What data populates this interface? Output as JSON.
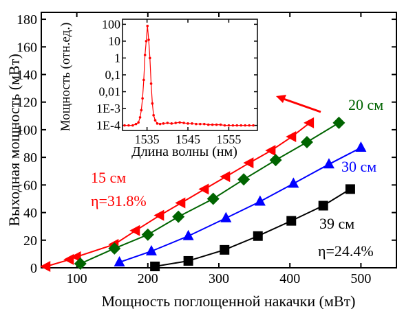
{
  "chart_data": [
    {
      "type": "line",
      "xlabel": "Мощность поглощенной накачки (мВт)",
      "ylabel": "Выходная мощность (мВт)",
      "xlim": [
        50,
        550
      ],
      "ylim": [
        0,
        185
      ],
      "xticks": [
        100,
        200,
        300,
        400,
        500
      ],
      "yticks": [
        0,
        20,
        40,
        60,
        80,
        100,
        120,
        140,
        160,
        180
      ],
      "grid": false,
      "series": [
        {
          "name": "15 см",
          "color": "#ff0000",
          "marker": "triangle-left",
          "x": [
            57,
            90,
            100,
            153,
            183,
            217,
            247,
            280,
            310,
            343,
            374,
            403,
            428
          ],
          "y": [
            1,
            6,
            8,
            17,
            27,
            38,
            47,
            57,
            66,
            76,
            85,
            95,
            105
          ]
        },
        {
          "name": "20 см",
          "color": "#006400",
          "marker": "diamond",
          "x": [
            105,
            153,
            200,
            243,
            292,
            335,
            380,
            424,
            469
          ],
          "y": [
            3,
            14,
            24,
            37,
            50,
            64,
            78,
            91,
            105
          ]
        },
        {
          "name": "30 см",
          "color": "#0000ff",
          "marker": "triangle-up",
          "x": [
            160,
            205,
            257,
            310,
            358,
            405,
            455,
            500
          ],
          "y": [
            4,
            12,
            23,
            36,
            48,
            61,
            75,
            87
          ]
        },
        {
          "name": "39 см",
          "color": "#000000",
          "marker": "square",
          "x": [
            210,
            257,
            308,
            355,
            402,
            447,
            485
          ],
          "y": [
            1,
            5,
            13,
            23,
            34,
            45,
            57
          ]
        }
      ],
      "annotations": [
        {
          "text": "15 см",
          "color": "#ff0000"
        },
        {
          "text": "η=31.8%",
          "color": "#ff0000"
        },
        {
          "text": "20 см",
          "color": "#006400"
        },
        {
          "text": "30 см",
          "color": "#0000ff"
        },
        {
          "text": "39 см",
          "color": "#000000"
        },
        {
          "text": "η=24.4%",
          "color": "#000000"
        }
      ]
    },
    {
      "type": "line",
      "xlabel": "Длина волны (нм)",
      "ylabel": "Мощность (отн.ед.)",
      "xlim": [
        1529,
        1562
      ],
      "ylog": true,
      "ylim": [
        5e-05,
        200
      ],
      "xticks": [
        1535,
        1545,
        1555
      ],
      "yticks": [
        100,
        10,
        1,
        0.1,
        0.01,
        0.001,
        0.0001
      ],
      "ytick_labels": [
        "100",
        "10",
        "1",
        "0,1",
        "0,01",
        "1E-3",
        "1E-4"
      ],
      "series": [
        {
          "color": "#ff0000",
          "x": [
            1529.5,
            1530.5,
            1531.5,
            1532.3,
            1532.9,
            1533.3,
            1533.6,
            1533.9,
            1534.2,
            1534.5,
            1534.8,
            1535.1,
            1535.4,
            1535.7,
            1536.0,
            1536.3,
            1536.6,
            1537.0,
            1537.5,
            1538.2,
            1539.0,
            1540.0,
            1541.0,
            1542.0,
            1543.0,
            1544.0,
            1545.0,
            1546.0,
            1547.0,
            1548.0,
            1549.0,
            1550.0,
            1551.0,
            1552.0,
            1553.0,
            1554.0,
            1555.0,
            1556.0,
            1557.0,
            1558.0,
            1559.0,
            1560.0,
            1561.0
          ],
          "y": [
            0.0001,
            0.0001,
            0.0001,
            0.00012,
            0.00015,
            0.0003,
            0.0008,
            0.004,
            0.05,
            1.5,
            10,
            80,
            12,
            1.0,
            0.03,
            0.002,
            0.0004,
            0.0002,
            0.00013,
            0.00012,
            0.00013,
            0.00014,
            0.00013,
            0.00014,
            0.00015,
            0.00014,
            0.00013,
            0.00013,
            0.00012,
            0.00012,
            0.00012,
            0.00011,
            0.00011,
            0.00011,
            0.00011,
            0.0001,
            0.0001,
            0.0001,
            0.0001,
            0.0001,
            0.0001,
            0.0001,
            0.0001
          ]
        }
      ]
    }
  ]
}
